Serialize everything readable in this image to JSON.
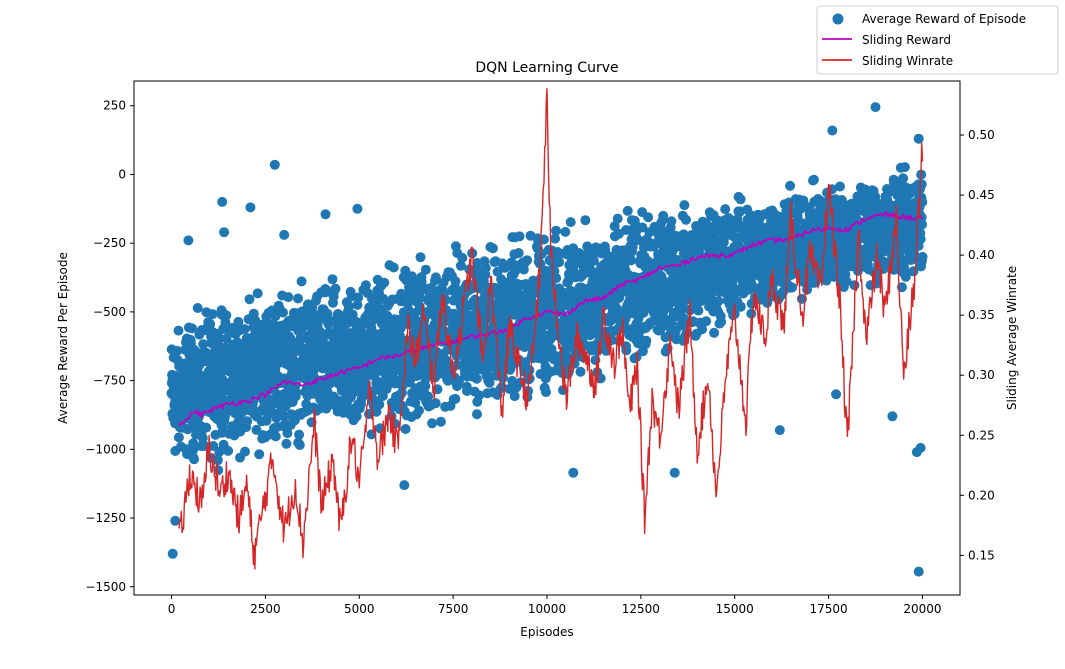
{
  "chart_data": {
    "type": "scatter",
    "title": "DQN Learning Curve",
    "xlabel": "Episodes",
    "ylabel": "Average Reward Per Episode",
    "y2label": "Sliding Average Winrate",
    "xlim": [
      -1000,
      21000
    ],
    "ylim": [
      -1530,
      340
    ],
    "y2lim": [
      0.117,
      0.545
    ],
    "x_ticks": [
      0,
      2500,
      5000,
      7500,
      10000,
      12500,
      15000,
      17500,
      20000
    ],
    "x_tick_labels": [
      "0",
      "2500",
      "5000",
      "7500",
      "10000",
      "12500",
      "15000",
      "17500",
      "20000"
    ],
    "y_ticks": [
      250,
      0,
      -250,
      -500,
      -750,
      -1000,
      -1250,
      -1500
    ],
    "y_tick_labels": [
      "250",
      "0",
      "−250",
      "−500",
      "−750",
      "−1000",
      "−1250",
      "−1500"
    ],
    "y2_ticks": [
      0.5,
      0.45,
      0.4,
      0.35,
      0.3,
      0.25,
      0.2,
      0.15
    ],
    "y2_tick_labels": [
      "0.50",
      "0.45",
      "0.40",
      "0.35",
      "0.30",
      "0.25",
      "0.20",
      "0.15"
    ],
    "grid": false,
    "legend_position": "top-right (outside axes)",
    "legend": [
      {
        "label": "Average Reward of Episode",
        "kind": "marker",
        "color": "#1f77b4"
      },
      {
        "label": "Sliding Reward",
        "kind": "line",
        "color": "#bf00bf"
      },
      {
        "label": "Sliding Winrate",
        "kind": "line",
        "color": "#d62728"
      }
    ],
    "series": [
      {
        "name": "Average Reward of Episode",
        "axis": "left",
        "color": "#1f77b4",
        "band_upper": [
          [
            0,
            -500
          ],
          [
            1000,
            -430
          ],
          [
            2500,
            -360
          ],
          [
            5000,
            -310
          ],
          [
            7500,
            -200
          ],
          [
            10000,
            -130
          ],
          [
            12500,
            -80
          ],
          [
            15000,
            -30
          ],
          [
            17500,
            20
          ],
          [
            20000,
            60
          ]
        ],
        "band_lower": [
          [
            0,
            -1130
          ],
          [
            1000,
            -1100
          ],
          [
            2500,
            -1060
          ],
          [
            5000,
            -1010
          ],
          [
            7500,
            -950
          ],
          [
            10000,
            -880
          ],
          [
            12500,
            -750
          ],
          [
            15000,
            -600
          ],
          [
            17500,
            -480
          ],
          [
            20000,
            -430
          ]
        ],
        "outliers": [
          [
            30,
            -1380
          ],
          [
            100,
            -1260
          ],
          [
            450,
            -240
          ],
          [
            1400,
            -210
          ],
          [
            1350,
            -100
          ],
          [
            2100,
            -120
          ],
          [
            2750,
            35
          ],
          [
            3000,
            -220
          ],
          [
            4100,
            -145
          ],
          [
            4950,
            -125
          ],
          [
            6200,
            -1130
          ],
          [
            10700,
            -1085
          ],
          [
            13400,
            -1085
          ],
          [
            16200,
            -930
          ],
          [
            17700,
            -800
          ],
          [
            17600,
            160
          ],
          [
            18750,
            245
          ],
          [
            19200,
            -880
          ],
          [
            19850,
            -1010
          ],
          [
            19950,
            -995
          ],
          [
            19900,
            -1445
          ],
          [
            19800,
            -230
          ],
          [
            19900,
            130
          ]
        ]
      },
      {
        "name": "Sliding Reward",
        "axis": "left",
        "color": "#bf00bf",
        "x": [
          200,
          400,
          600,
          800,
          1000,
          1500,
          2000,
          2500,
          3000,
          3500,
          4000,
          4500,
          5000,
          5500,
          6000,
          6500,
          7000,
          7500,
          8000,
          8500,
          9000,
          9500,
          10000,
          10500,
          11000,
          11500,
          12000,
          12500,
          13000,
          13500,
          14000,
          14500,
          15000,
          15500,
          16000,
          16500,
          17000,
          17500,
          18000,
          18500,
          19000,
          19500,
          20000
        ],
        "y": [
          -905,
          -895,
          -860,
          -875,
          -860,
          -835,
          -825,
          -800,
          -755,
          -765,
          -745,
          -720,
          -705,
          -670,
          -660,
          -640,
          -620,
          -610,
          -590,
          -580,
          -560,
          -520,
          -500,
          -510,
          -460,
          -450,
          -400,
          -380,
          -340,
          -330,
          -300,
          -295,
          -290,
          -255,
          -240,
          -235,
          -205,
          -195,
          -200,
          -160,
          -145,
          -155,
          -160
        ]
      },
      {
        "name": "Sliding Winrate",
        "axis": "right",
        "color": "#d62728",
        "x": [
          200,
          500,
          800,
          1000,
          1300,
          1500,
          1800,
          2000,
          2200,
          2500,
          2700,
          3000,
          3300,
          3500,
          3800,
          4000,
          4300,
          4500,
          4800,
          5000,
          5300,
          5500,
          5800,
          6000,
          6300,
          6500,
          6700,
          7000,
          7200,
          7500,
          7700,
          8000,
          8300,
          8500,
          8800,
          9000,
          9300,
          9500,
          9800,
          10000,
          10100,
          10300,
          10500,
          10800,
          11000,
          11300,
          11500,
          11800,
          12000,
          12200,
          12400,
          12600,
          12800,
          13000,
          13300,
          13500,
          13800,
          14000,
          14300,
          14500,
          14800,
          15000,
          15300,
          15500,
          15800,
          16000,
          16300,
          16500,
          16800,
          17000,
          17300,
          17500,
          17800,
          18000,
          18300,
          18500,
          18800,
          19000,
          19300,
          19500,
          19800,
          20000
        ],
        "y": [
          0.16,
          0.22,
          0.19,
          0.24,
          0.2,
          0.22,
          0.18,
          0.21,
          0.15,
          0.2,
          0.23,
          0.17,
          0.21,
          0.16,
          0.26,
          0.19,
          0.23,
          0.17,
          0.25,
          0.21,
          0.29,
          0.23,
          0.27,
          0.24,
          0.34,
          0.31,
          0.35,
          0.29,
          0.37,
          0.3,
          0.34,
          0.4,
          0.31,
          0.38,
          0.27,
          0.34,
          0.3,
          0.28,
          0.38,
          0.53,
          0.4,
          0.34,
          0.28,
          0.33,
          0.32,
          0.29,
          0.35,
          0.31,
          0.34,
          0.27,
          0.31,
          0.18,
          0.28,
          0.25,
          0.33,
          0.27,
          0.35,
          0.24,
          0.3,
          0.2,
          0.31,
          0.35,
          0.26,
          0.37,
          0.33,
          0.38,
          0.34,
          0.43,
          0.35,
          0.4,
          0.37,
          0.46,
          0.36,
          0.24,
          0.42,
          0.33,
          0.4,
          0.35,
          0.43,
          0.3,
          0.38,
          0.49
        ]
      }
    ]
  }
}
